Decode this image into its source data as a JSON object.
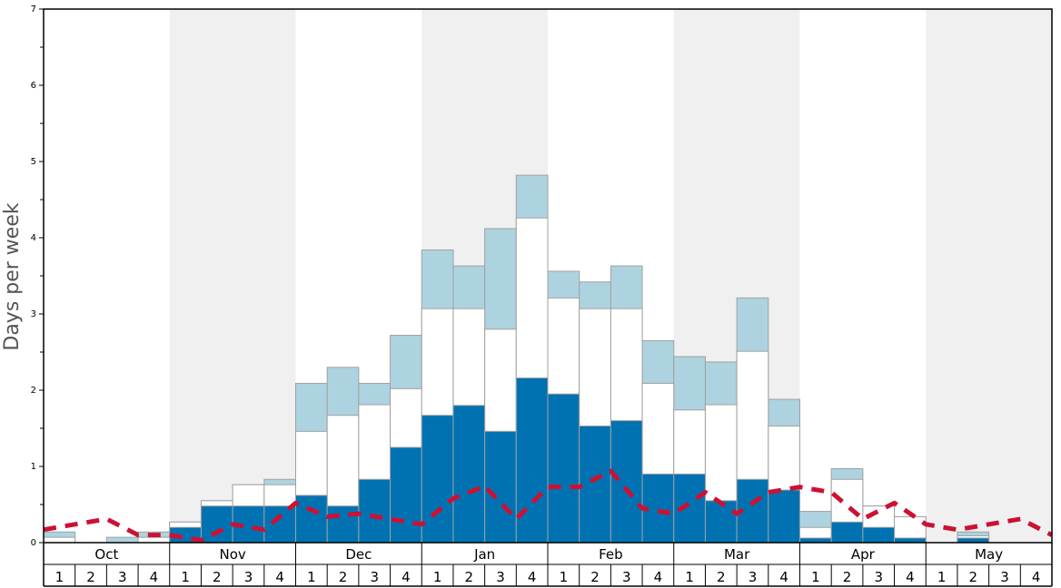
{
  "chart_data": {
    "type": "bar",
    "ylabel": "Days per week",
    "ylim": [
      0,
      7
    ],
    "yticks": [
      0,
      1,
      2,
      3,
      4,
      5,
      6,
      7
    ],
    "ytick_labels": [
      "0",
      "1",
      "2",
      "3",
      "4",
      "5",
      "6",
      "7"
    ],
    "months": [
      "Oct",
      "Nov",
      "Dec",
      "Jan",
      "Feb",
      "Mar",
      "Apr",
      "May"
    ],
    "weeks": [
      "1",
      "2",
      "3",
      "4"
    ],
    "month_shading": [
      false,
      true,
      false,
      true,
      false,
      true,
      false,
      true
    ],
    "categories": [
      "Oct 1",
      "Oct 2",
      "Oct 3",
      "Oct 4",
      "Nov 1",
      "Nov 2",
      "Nov 3",
      "Nov 4",
      "Dec 1",
      "Dec 2",
      "Dec 3",
      "Dec 4",
      "Jan 1",
      "Jan 2",
      "Jan 3",
      "Jan 4",
      "Feb 1",
      "Feb 2",
      "Feb 3",
      "Feb 4",
      "Mar 1",
      "Mar 2",
      "Mar 3",
      "Mar 4",
      "Apr 1",
      "Apr 2",
      "Apr 3",
      "Apr 4",
      "May 1",
      "May 2",
      "May 3",
      "May 4"
    ],
    "series": [
      {
        "color": "#0072b2",
        "values": [
          0,
          0,
          0,
          0,
          0.2,
          0.48,
          0.48,
          0.48,
          0.62,
          0.48,
          0.83,
          1.25,
          1.67,
          1.8,
          1.46,
          2.16,
          1.95,
          1.53,
          1.6,
          0.9,
          0.9,
          0.55,
          0.83,
          0.69,
          0.06,
          0.27,
          0.2,
          0.06,
          0,
          0.06,
          0,
          0
        ]
      },
      {
        "color": "#ffffff",
        "values": [
          0.07,
          0,
          0,
          0.07,
          0.27,
          0.55,
          0.76,
          0.76,
          1.46,
          1.67,
          1.81,
          2.02,
          3.07,
          3.07,
          2.8,
          4.26,
          3.21,
          3.07,
          3.07,
          2.09,
          1.74,
          1.81,
          2.51,
          1.53,
          0.2,
          0.83,
          0.48,
          0.34,
          0,
          0.09,
          0,
          0
        ]
      },
      {
        "color": "#aed3e0",
        "values": [
          0.14,
          0,
          0.07,
          0.14,
          0.27,
          0.55,
          0.76,
          0.83,
          2.09,
          2.3,
          2.09,
          2.72,
          3.84,
          3.63,
          4.12,
          4.82,
          3.56,
          3.42,
          3.63,
          2.65,
          2.44,
          2.37,
          3.21,
          1.88,
          0.41,
          0.97,
          0.48,
          0.34,
          0,
          0.14,
          0,
          0
        ]
      }
    ],
    "average_line": {
      "color": "#cc1133",
      "x": [
        0,
        1,
        2,
        3,
        4,
        5,
        6,
        7,
        8,
        9,
        10,
        11,
        12,
        13,
        14,
        15,
        16,
        17,
        18,
        19,
        20,
        21,
        22,
        23,
        24,
        25,
        26,
        27,
        28,
        29,
        30,
        31,
        32
      ],
      "y": [
        0.17,
        0.24,
        0.31,
        0.1,
        0.1,
        0.03,
        0.24,
        0.17,
        0.52,
        0.34,
        0.38,
        0.31,
        0.24,
        0.58,
        0.74,
        0.31,
        0.73,
        0.73,
        0.94,
        0.45,
        0.38,
        0.66,
        0.38,
        0.66,
        0.73,
        0.66,
        0.31,
        0.52,
        0.24,
        0.17,
        0.24,
        0.31,
        0.1
      ]
    }
  }
}
